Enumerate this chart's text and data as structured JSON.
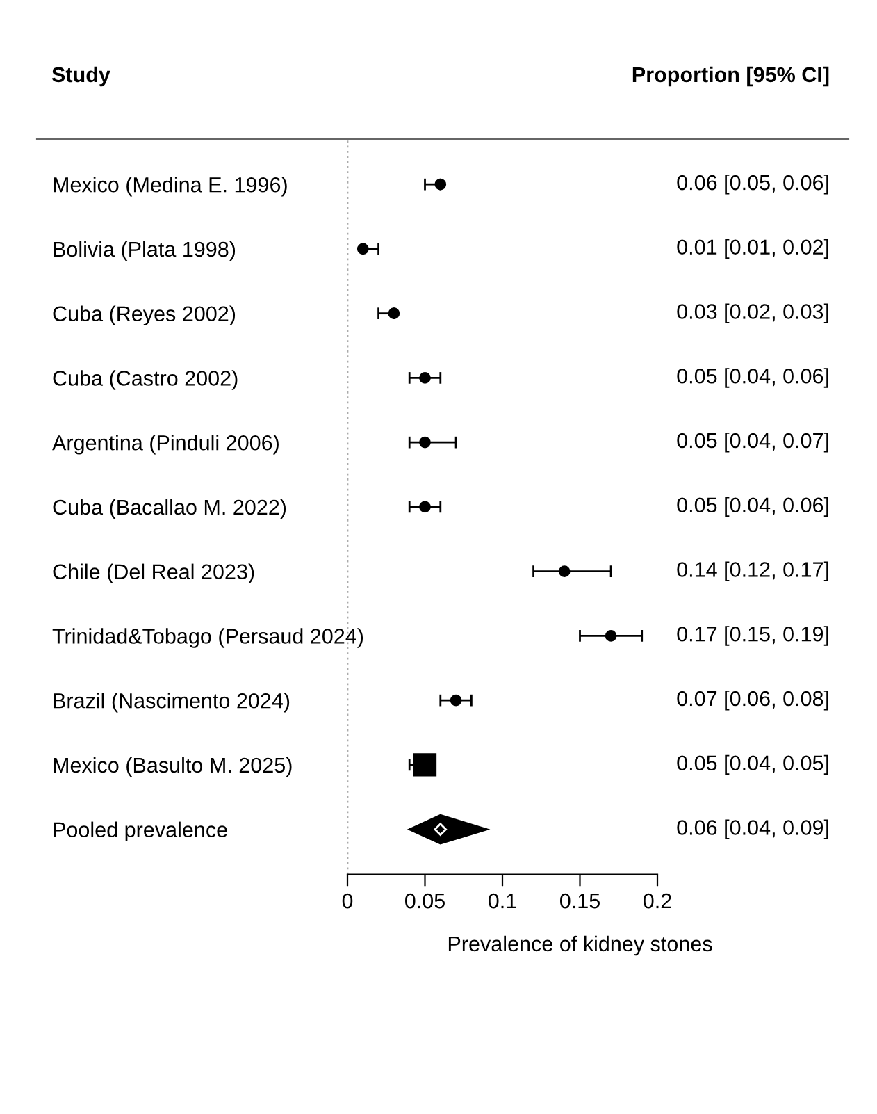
{
  "chart_data": {
    "type": "scatter",
    "orientation": "horizontal",
    "categories": [
      "Mexico (Medina E. 1996)",
      "Bolivia (Plata 1998)",
      "Cuba (Reyes 2002)",
      "Cuba (Castro 2002)",
      "Argentina (Pinduli 2006)",
      "Cuba (Bacallao M. 2022)",
      "Chile (Del Real 2023)",
      "Trinidad&Tobago (Persaud 2024)",
      "Brazil (Nascimento 2024)",
      "Mexico (Basulto M. 2025)",
      "Pooled prevalence"
    ],
    "series": [
      {
        "color": "#000000",
        "marker": "circle",
        "values": [
          0.06,
          0.01,
          0.03,
          0.05,
          0.05,
          0.05,
          0.14,
          0.17,
          0.07,
          null,
          null
        ],
        "errors": [
          [
            0.05,
            0.06
          ],
          [
            0.01,
            0.02
          ],
          [
            0.02,
            0.03
          ],
          [
            0.04,
            0.06
          ],
          [
            0.04,
            0.07
          ],
          [
            0.04,
            0.06
          ],
          [
            0.12,
            0.17
          ],
          [
            0.15,
            0.19
          ],
          [
            0.06,
            0.08
          ],
          null,
          null
        ]
      },
      {
        "color": "#000000",
        "marker": "square",
        "values": [
          null,
          null,
          null,
          null,
          null,
          null,
          null,
          null,
          null,
          0.05,
          null
        ],
        "errors": [
          null,
          null,
          null,
          null,
          null,
          null,
          null,
          null,
          null,
          [
            0.04,
            0.05
          ],
          null
        ]
      },
      {
        "color": "#000000",
        "marker": "diamond",
        "values": [
          null,
          null,
          null,
          null,
          null,
          null,
          null,
          null,
          null,
          null,
          0.06
        ],
        "errors": [
          null,
          null,
          null,
          null,
          null,
          null,
          null,
          null,
          null,
          null,
          [
            0.04,
            0.09
          ]
        ]
      }
    ],
    "value_labels": [
      "0.06 [0.05, 0.06]",
      "0.01 [0.01, 0.02]",
      "0.03 [0.02, 0.03]",
      "0.05 [0.04, 0.06]",
      "0.05 [0.04, 0.07]",
      "0.05 [0.04, 0.06]",
      "0.14 [0.12, 0.17]",
      "0.17 [0.15, 0.19]",
      "0.07 [0.06, 0.08]",
      "0.05 [0.04, 0.05]",
      "0.06 [0.04, 0.09]"
    ],
    "xlabel": "Prevalence of kidney stones",
    "annotations": [
      "Study",
      "Proportion [95% CI]"
    ],
    "xlim": [
      0,
      0.2
    ],
    "xticks": [
      0,
      0.05,
      0.1,
      0.15,
      0.2
    ],
    "ref_lines": [
      {
        "axis": "x",
        "value": 0,
        "color": "#aaaaaa",
        "line_style": "dotted"
      }
    ],
    "grid": false,
    "legend": false
  }
}
